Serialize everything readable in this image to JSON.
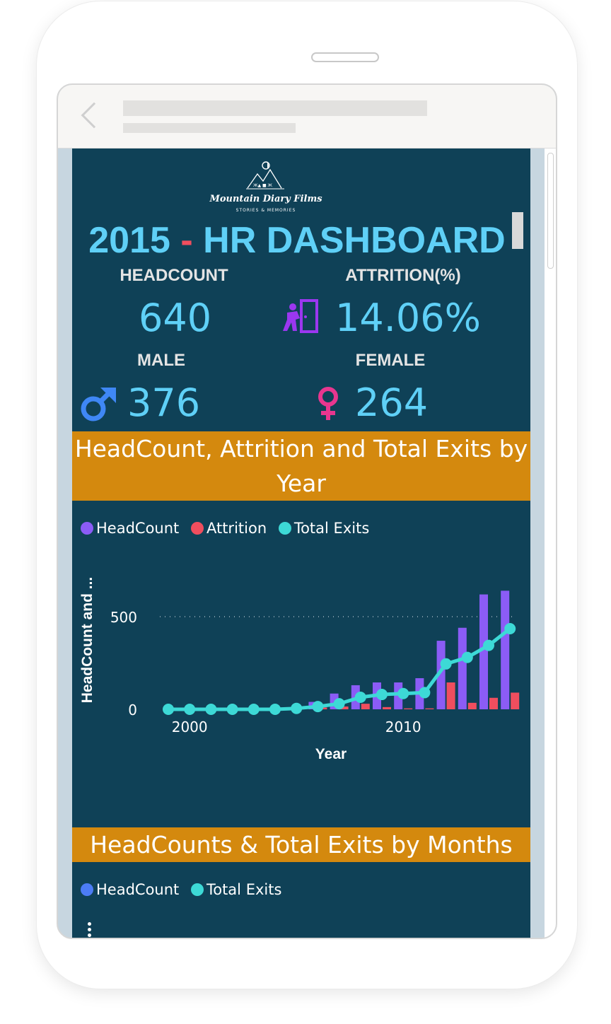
{
  "logo": {
    "name": "Mountain Diary Films",
    "tagline": "STORIES & MEMORIES"
  },
  "title": {
    "year": "2015",
    "separator": "-",
    "text": "HR DASHBOARD"
  },
  "kpis": {
    "headcount": {
      "label": "HEADCOUNT",
      "value": "640"
    },
    "attrition": {
      "label": "ATTRITION(%)",
      "value": "14.06%"
    },
    "male": {
      "label": "MALE",
      "value": "376"
    },
    "female": {
      "label": "FEMALE",
      "value": "264"
    }
  },
  "colors": {
    "headcount": "#8b5cf6",
    "attrition": "#f04e5e",
    "total_exits": "#3dd9d6",
    "headcount_months": "#4c7cf5",
    "header_bg": "#d4890e",
    "report_bg": "#0f4157",
    "accent": "#5fd0f7"
  },
  "icons": {
    "attrition": "exit-door-icon",
    "male": "male-symbol-icon",
    "female": "female-symbol-icon"
  },
  "section1": {
    "title": "HeadCount, Attrition and Total Exits by Year",
    "legend": [
      "HeadCount",
      "Attrition",
      "Total Exits"
    ]
  },
  "section2": {
    "title": "HeadCounts & Total Exits by Months",
    "legend": [
      "HeadCount",
      "Total Exits"
    ]
  },
  "chart_data": {
    "type": "bar",
    "title": "HeadCount, Attrition and Total Exits by Year",
    "xlabel": "Year",
    "ylabel": "HeadCount and ...",
    "x": [
      1999,
      2000,
      2001,
      2002,
      2003,
      2004,
      2005,
      2006,
      2007,
      2008,
      2009,
      2010,
      2011,
      2012,
      2013,
      2014,
      2015
    ],
    "series": [
      {
        "name": "HeadCount",
        "type": "bar",
        "values": [
          0,
          0,
          0,
          0,
          0,
          2,
          8,
          40,
          85,
          130,
          145,
          145,
          168,
          370,
          440,
          620,
          640
        ]
      },
      {
        "name": "Attrition",
        "type": "bar",
        "values": [
          0,
          0,
          0,
          0,
          0,
          0,
          3,
          10,
          15,
          30,
          12,
          5,
          5,
          145,
          35,
          62,
          90
        ]
      },
      {
        "name": "Total Exits",
        "type": "line",
        "values": [
          0,
          0,
          0,
          0,
          0,
          0,
          5,
          15,
          30,
          65,
          80,
          85,
          90,
          245,
          280,
          345,
          435
        ]
      }
    ],
    "xticks": [
      "2000",
      "2010"
    ],
    "yticks": [
      "0",
      "500"
    ],
    "ylim": [
      0,
      700
    ],
    "grid": "horizontal dotted at 500",
    "legend_position": "top-left"
  }
}
